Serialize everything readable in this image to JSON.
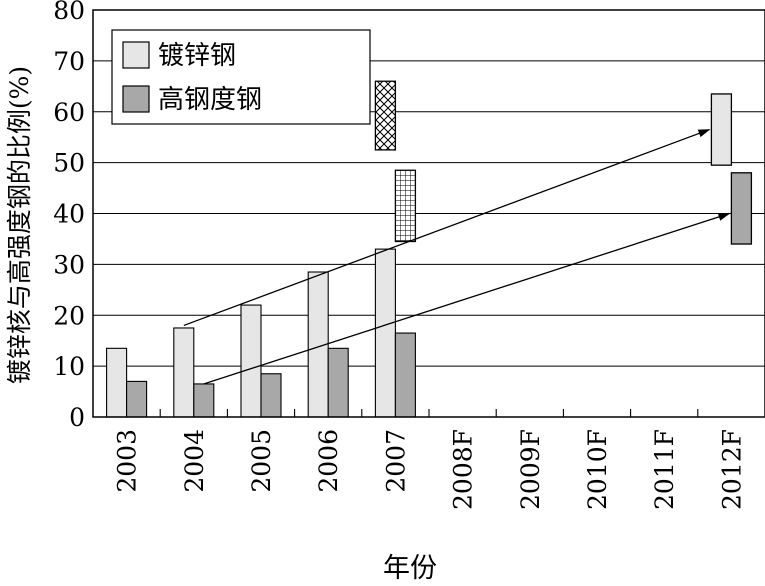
{
  "chart_data": {
    "type": "bar",
    "categories": [
      "2003",
      "2004",
      "2005",
      "2006",
      "2007",
      "2008F",
      "2009F",
      "2010F",
      "2011F",
      "2012F"
    ],
    "series": [
      {
        "name": "镀锌钢",
        "color": "#e6e6e6",
        "values": [
          13.5,
          17.5,
          22,
          28.5,
          33,
          null,
          null,
          null,
          null,
          null
        ]
      },
      {
        "name": "高钢度钢",
        "color": "#a8a8a8",
        "values": [
          7,
          6.5,
          8.5,
          13.5,
          16.5,
          null,
          null,
          null,
          null,
          null
        ]
      }
    ],
    "forecast_ranges": [
      {
        "category": "2007",
        "low": 52.5,
        "high": 66,
        "pattern": "crosshatch"
      },
      {
        "category": "2007",
        "low": 34.5,
        "high": 48.5,
        "pattern": "grid"
      },
      {
        "category": "2012F",
        "series": "镀锌钢",
        "low": 49.5,
        "high": 63.5
      },
      {
        "category": "2012F",
        "series": "高钢度钢",
        "low": 34,
        "high": 48
      }
    ],
    "trend_arrows": [
      {
        "series": "镀锌钢",
        "from": [
          "2004",
          18
        ],
        "to": [
          "2012F",
          56.5
        ]
      },
      {
        "series": "高钢度钢",
        "from": [
          "2004",
          6.5
        ],
        "to": [
          "2012F",
          40
        ]
      }
    ],
    "title": "",
    "xlabel": "年份",
    "ylabel": "镀锌核与高强度钢的比例(%)",
    "ylim": [
      0,
      80
    ],
    "yticks": [
      "0",
      "10",
      "20",
      "30",
      "40",
      "50",
      "60",
      "70",
      "80"
    ],
    "grid": "horizontal",
    "legend": "top-left"
  }
}
